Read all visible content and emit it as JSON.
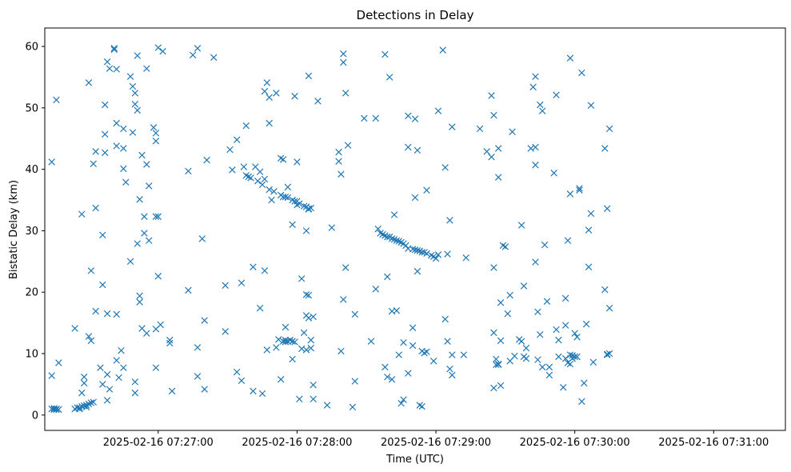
{
  "chart_data": {
    "type": "scatter",
    "title": "Detections in Delay",
    "xlabel": "Time (UTC)",
    "ylabel": "Bistatic Delay (km)",
    "marker": "x",
    "color": "#1f77b4",
    "grid": false,
    "x_ticks": [
      "2025-02-16 07:27:00",
      "2025-02-16 07:28:00",
      "2025-02-16 07:29:00",
      "2025-02-16 07:30:00",
      "2025-02-16 07:31:00"
    ],
    "x_tick_values": [
      "07:27:00",
      "07:28:00",
      "07:29:00",
      "07:30:00",
      "07:31:00"
    ],
    "y_ticks": [
      0,
      10,
      20,
      30,
      40,
      50,
      60
    ],
    "xlim": [
      "07:26:11",
      "07:31:31"
    ],
    "ylim": [
      -2.5,
      63
    ],
    "points": [
      [
        "07:26:14",
        41.2
      ],
      [
        "07:26:14",
        6.4
      ],
      [
        "07:26:16",
        51.3
      ],
      [
        "07:26:17",
        8.5
      ],
      [
        "07:26:14",
        1.0
      ],
      [
        "07:26:15",
        0.9
      ],
      [
        "07:26:16",
        1.0
      ],
      [
        "07:26:17",
        0.9
      ],
      [
        "07:26:15",
        1.1
      ],
      [
        "07:26:16",
        0.9
      ],
      [
        "07:26:24",
        1.0
      ],
      [
        "07:26:25",
        1.2
      ],
      [
        "07:26:26",
        1.2
      ],
      [
        "07:26:27",
        1.4
      ],
      [
        "07:26:28",
        1.5
      ],
      [
        "07:26:29",
        1.6
      ],
      [
        "07:26:30",
        1.8
      ],
      [
        "07:26:31",
        2.0
      ],
      [
        "07:26:32",
        2.1
      ],
      [
        "07:26:29",
        1.3
      ],
      [
        "07:26:26",
        1.0
      ],
      [
        "07:26:24",
        14.1
      ],
      [
        "07:26:27",
        32.7
      ],
      [
        "07:26:27",
        3.6
      ],
      [
        "07:26:28",
        6.2
      ],
      [
        "07:26:28",
        5.2
      ],
      [
        "07:26:30",
        54.1
      ],
      [
        "07:26:30",
        12.8
      ],
      [
        "07:26:31",
        12.1
      ],
      [
        "07:26:31",
        23.5
      ],
      [
        "07:26:32",
        40.9
      ],
      [
        "07:26:33",
        42.9
      ],
      [
        "07:26:33",
        33.7
      ],
      [
        "07:26:33",
        16.9
      ],
      [
        "07:26:35",
        7.7
      ],
      [
        "07:26:36",
        21.2
      ],
      [
        "07:26:36",
        29.3
      ],
      [
        "07:26:36",
        5.0
      ],
      [
        "07:26:37",
        50.5
      ],
      [
        "07:26:37",
        45.7
      ],
      [
        "07:26:37",
        42.7
      ],
      [
        "07:26:38",
        57.5
      ],
      [
        "07:26:38",
        16.5
      ],
      [
        "07:26:38",
        6.6
      ],
      [
        "07:26:38",
        2.4
      ],
      [
        "07:26:39",
        56.4
      ],
      [
        "07:26:39",
        4.2
      ],
      [
        "07:26:41",
        59.5
      ],
      [
        "07:26:41",
        59.7
      ],
      [
        "07:26:42",
        56.3
      ],
      [
        "07:26:42",
        47.5
      ],
      [
        "07:26:42",
        43.8
      ],
      [
        "07:26:42",
        16.4
      ],
      [
        "07:26:42",
        8.9
      ],
      [
        "07:26:43",
        6.1
      ],
      [
        "07:26:44",
        10.5
      ],
      [
        "07:26:45",
        40.1
      ],
      [
        "07:26:45",
        46.6
      ],
      [
        "07:26:45",
        43.4
      ],
      [
        "07:26:45",
        7.7
      ],
      [
        "07:26:46",
        37.9
      ],
      [
        "07:26:48",
        55.1
      ],
      [
        "07:26:48",
        25.0
      ],
      [
        "07:26:49",
        53.5
      ],
      [
        "07:26:49",
        46.0
      ],
      [
        "07:26:50",
        52.4
      ],
      [
        "07:26:50",
        50.6
      ],
      [
        "07:26:50",
        3.6
      ],
      [
        "07:26:50",
        5.4
      ],
      [
        "07:26:51",
        58.5
      ],
      [
        "07:26:51",
        49.6
      ],
      [
        "07:26:51",
        27.9
      ],
      [
        "07:26:52",
        35.1
      ],
      [
        "07:26:52",
        18.4
      ],
      [
        "07:26:52",
        19.4
      ],
      [
        "07:26:53",
        42.3
      ],
      [
        "07:26:53",
        14.1
      ],
      [
        "07:26:54",
        32.3
      ],
      [
        "07:26:54",
        29.6
      ],
      [
        "07:26:55",
        56.4
      ],
      [
        "07:26:55",
        40.8
      ],
      [
        "07:26:56",
        37.3
      ],
      [
        "07:26:56",
        28.4
      ],
      [
        "07:26:55",
        13.3
      ],
      [
        "07:26:58",
        46.8
      ],
      [
        "07:26:59",
        45.9
      ],
      [
        "07:26:59",
        44.6
      ],
      [
        "07:26:59",
        32.3
      ],
      [
        "07:26:59",
        14.0
      ],
      [
        "07:26:59",
        7.7
      ],
      [
        "07:27:00",
        59.8
      ],
      [
        "07:27:00",
        32.3
      ],
      [
        "07:27:00",
        22.6
      ],
      [
        "07:27:01",
        14.7
      ],
      [
        "07:27:02",
        59.2
      ],
      [
        "07:27:05",
        11.7
      ],
      [
        "07:27:05",
        12.2
      ],
      [
        "07:27:06",
        3.9
      ],
      [
        "07:27:13",
        39.7
      ],
      [
        "07:27:13",
        20.3
      ],
      [
        "07:27:15",
        58.6
      ],
      [
        "07:27:17",
        59.7
      ],
      [
        "07:27:17",
        6.3
      ],
      [
        "07:27:17",
        11.0
      ],
      [
        "07:27:19",
        28.7
      ],
      [
        "07:27:20",
        4.2
      ],
      [
        "07:27:20",
        15.4
      ],
      [
        "07:27:21",
        41.5
      ],
      [
        "07:27:24",
        58.2
      ],
      [
        "07:27:29",
        21.1
      ],
      [
        "07:27:29",
        13.6
      ],
      [
        "07:27:31",
        43.2
      ],
      [
        "07:27:32",
        39.9
      ],
      [
        "07:27:34",
        44.8
      ],
      [
        "07:27:34",
        7.0
      ],
      [
        "07:27:36",
        21.5
      ],
      [
        "07:27:36",
        5.6
      ],
      [
        "07:27:38",
        47.1
      ],
      [
        "07:27:41",
        24.1
      ],
      [
        "07:27:41",
        3.9
      ],
      [
        "07:27:44",
        17.4
      ],
      [
        "07:27:45",
        3.5
      ],
      [
        "07:27:46",
        23.5
      ],
      [
        "07:27:47",
        10.6
      ],
      [
        "07:27:51",
        11.0
      ],
      [
        "07:27:53",
        5.8
      ],
      [
        "07:27:37",
        40.4
      ],
      [
        "07:27:38",
        39.0
      ],
      [
        "07:27:39",
        38.8
      ],
      [
        "07:27:40",
        38.6
      ],
      [
        "07:27:42",
        40.4
      ],
      [
        "07:27:43",
        38.1
      ],
      [
        "07:27:44",
        39.6
      ],
      [
        "07:27:45",
        37.5
      ],
      [
        "07:27:46",
        38.4
      ],
      [
        "07:27:48",
        36.7
      ],
      [
        "07:27:49",
        35.0
      ],
      [
        "07:27:50",
        36.4
      ],
      [
        "07:27:53",
        35.8
      ],
      [
        "07:27:54",
        35.5
      ],
      [
        "07:27:55",
        35.5
      ],
      [
        "07:27:56",
        37.1
      ],
      [
        "07:27:56",
        35.4
      ],
      [
        "07:27:58",
        35.0
      ],
      [
        "07:27:59",
        34.8
      ],
      [
        "07:28:00",
        34.8
      ],
      [
        "07:28:00",
        34.2
      ],
      [
        "07:28:01",
        34.4
      ],
      [
        "07:28:03",
        34.0
      ],
      [
        "07:28:04",
        33.9
      ],
      [
        "07:28:05",
        33.6
      ],
      [
        "07:28:05",
        33.5
      ],
      [
        "07:28:06",
        33.7
      ],
      [
        "07:27:46",
        52.7
      ],
      [
        "07:27:47",
        54.1
      ],
      [
        "07:27:48",
        51.7
      ],
      [
        "07:27:48",
        47.5
      ],
      [
        "07:27:51",
        52.4
      ],
      [
        "07:27:53",
        41.8
      ],
      [
        "07:27:54",
        41.6
      ],
      [
        "07:27:58",
        31.0
      ],
      [
        "07:27:58",
        9.1
      ],
      [
        "07:27:59",
        51.9
      ],
      [
        "07:28:00",
        41.2
      ],
      [
        "07:27:52",
        12.3
      ],
      [
        "07:27:54",
        12.0
      ],
      [
        "07:27:55",
        12.2
      ],
      [
        "07:27:56",
        12.0
      ],
      [
        "07:27:57",
        12.2
      ],
      [
        "07:27:58",
        12.0
      ],
      [
        "07:27:59",
        11.9
      ],
      [
        "07:27:55",
        14.3
      ],
      [
        "07:27:55",
        11.9
      ],
      [
        "07:28:01",
        2.6
      ],
      [
        "07:28:02",
        22.2
      ],
      [
        "07:28:02",
        10.8
      ],
      [
        "07:28:03",
        13.4
      ],
      [
        "07:28:04",
        19.6
      ],
      [
        "07:28:04",
        16.2
      ],
      [
        "07:28:04",
        10.6
      ],
      [
        "07:28:05",
        19.5
      ],
      [
        "07:28:05",
        15.8
      ],
      [
        "07:28:06",
        12.2
      ],
      [
        "07:28:06",
        10.9
      ],
      [
        "07:28:07",
        16.0
      ],
      [
        "07:28:07",
        4.9
      ],
      [
        "07:28:07",
        2.6
      ],
      [
        "07:28:04",
        30.0
      ],
      [
        "07:28:05",
        55.2
      ],
      [
        "07:28:09",
        51.1
      ],
      [
        "07:28:13",
        1.6
      ],
      [
        "07:28:15",
        30.5
      ],
      [
        "07:28:18",
        41.3
      ],
      [
        "07:28:18",
        42.8
      ],
      [
        "07:28:19",
        39.2
      ],
      [
        "07:28:19",
        10.4
      ],
      [
        "07:28:20",
        57.4
      ],
      [
        "07:28:20",
        58.8
      ],
      [
        "07:28:20",
        18.8
      ],
      [
        "07:28:21",
        52.4
      ],
      [
        "07:28:21",
        24.0
      ],
      [
        "07:28:22",
        43.9
      ],
      [
        "07:28:24",
        1.3
      ],
      [
        "07:28:25",
        5.5
      ],
      [
        "07:28:25",
        16.4
      ],
      [
        "07:28:29",
        48.3
      ],
      [
        "07:28:32",
        12.0
      ],
      [
        "07:28:34",
        48.3
      ],
      [
        "07:28:34",
        20.5
      ],
      [
        "07:28:35",
        30.3
      ],
      [
        "07:28:36",
        29.6
      ],
      [
        "07:28:37",
        29.4
      ],
      [
        "07:28:38",
        29.2
      ],
      [
        "07:28:39",
        29.0
      ],
      [
        "07:28:40",
        29.0
      ],
      [
        "07:28:41",
        28.7
      ],
      [
        "07:28:42",
        28.6
      ],
      [
        "07:28:43",
        28.4
      ],
      [
        "07:28:44",
        28.3
      ],
      [
        "07:28:45",
        28.1
      ],
      [
        "07:28:46",
        27.9
      ],
      [
        "07:28:47",
        27.6
      ],
      [
        "07:28:48",
        27.1
      ],
      [
        "07:28:50",
        27.0
      ],
      [
        "07:28:51",
        26.9
      ],
      [
        "07:28:52",
        26.8
      ],
      [
        "07:28:53",
        26.7
      ],
      [
        "07:28:54",
        26.5
      ],
      [
        "07:28:55",
        26.5
      ],
      [
        "07:28:56",
        26.3
      ],
      [
        "07:28:58",
        26.0
      ],
      [
        "07:28:59",
        25.8
      ],
      [
        "07:29:00",
        25.5
      ],
      [
        "07:29:01",
        26.1
      ],
      [
        "07:29:05",
        26.2
      ],
      [
        "07:28:38",
        58.7
      ],
      [
        "07:28:39",
        22.5
      ],
      [
        "07:28:40",
        55.0
      ],
      [
        "07:28:38",
        7.8
      ],
      [
        "07:28:39",
        6.2
      ],
      [
        "07:28:41",
        16.9
      ],
      [
        "07:28:41",
        5.8
      ],
      [
        "07:28:42",
        32.6
      ],
      [
        "07:28:43",
        17.0
      ],
      [
        "07:28:44",
        9.8
      ],
      [
        "07:28:45",
        1.9
      ],
      [
        "07:28:46",
        2.5
      ],
      [
        "07:28:46",
        11.8
      ],
      [
        "07:28:48",
        6.8
      ],
      [
        "07:28:48",
        48.7
      ],
      [
        "07:28:48",
        43.6
      ],
      [
        "07:28:50",
        14.2
      ],
      [
        "07:28:50",
        11.3
      ],
      [
        "07:28:51",
        48.2
      ],
      [
        "07:28:51",
        35.4
      ],
      [
        "07:28:52",
        23.4
      ],
      [
        "07:28:52",
        43.1
      ],
      [
        "07:28:53",
        1.6
      ],
      [
        "07:28:54",
        1.4
      ],
      [
        "07:28:54",
        10.4
      ],
      [
        "07:28:55",
        10.1
      ],
      [
        "07:28:56",
        10.3
      ],
      [
        "07:28:56",
        36.6
      ],
      [
        "07:28:59",
        8.8
      ],
      [
        "07:29:01",
        49.5
      ],
      [
        "07:29:03",
        59.4
      ],
      [
        "07:29:04",
        40.3
      ],
      [
        "07:29:04",
        15.6
      ],
      [
        "07:29:05",
        12.0
      ],
      [
        "07:29:06",
        31.7
      ],
      [
        "07:29:06",
        7.5
      ],
      [
        "07:29:07",
        6.5
      ],
      [
        "07:29:07",
        9.8
      ],
      [
        "07:29:07",
        46.9
      ],
      [
        "07:29:12",
        9.8
      ],
      [
        "07:29:13",
        25.6
      ],
      [
        "07:29:19",
        46.6
      ],
      [
        "07:29:22",
        42.9
      ],
      [
        "07:29:24",
        42.0
      ],
      [
        "07:29:24",
        52.0
      ],
      [
        "07:29:25",
        48.8
      ],
      [
        "07:29:25",
        24.0
      ],
      [
        "07:29:25",
        13.4
      ],
      [
        "07:29:25",
        4.4
      ],
      [
        "07:29:26",
        9.1
      ],
      [
        "07:29:26",
        8.2
      ],
      [
        "07:29:27",
        8.2
      ],
      [
        "07:29:27",
        8.3
      ],
      [
        "07:29:27",
        43.4
      ],
      [
        "07:29:27",
        38.7
      ],
      [
        "07:29:28",
        18.3
      ],
      [
        "07:29:28",
        12.1
      ],
      [
        "07:29:28",
        4.8
      ],
      [
        "07:29:29",
        27.6
      ],
      [
        "07:29:30",
        27.4
      ],
      [
        "07:29:31",
        16.5
      ],
      [
        "07:29:32",
        8.8
      ],
      [
        "07:29:32",
        19.5
      ],
      [
        "07:29:33",
        46.1
      ],
      [
        "07:29:34",
        9.6
      ],
      [
        "07:29:36",
        12.3
      ],
      [
        "07:29:37",
        12.0
      ],
      [
        "07:29:37",
        30.9
      ],
      [
        "07:29:38",
        21.0
      ],
      [
        "07:29:38",
        9.5
      ],
      [
        "07:29:39",
        10.9
      ],
      [
        "07:29:39",
        9.2
      ],
      [
        "07:29:41",
        43.4
      ],
      [
        "07:29:42",
        53.4
      ],
      [
        "07:29:43",
        55.1
      ],
      [
        "07:29:43",
        43.6
      ],
      [
        "07:29:43",
        40.7
      ],
      [
        "07:29:43",
        24.9
      ],
      [
        "07:29:44",
        16.8
      ],
      [
        "07:29:44",
        9.0
      ],
      [
        "07:29:45",
        50.5
      ],
      [
        "07:29:45",
        13.1
      ],
      [
        "07:29:46",
        49.5
      ],
      [
        "07:29:46",
        7.8
      ],
      [
        "07:29:47",
        27.7
      ],
      [
        "07:29:48",
        18.5
      ],
      [
        "07:29:49",
        6.5
      ],
      [
        "07:29:49",
        7.8
      ],
      [
        "07:29:51",
        39.4
      ],
      [
        "07:29:52",
        52.1
      ],
      [
        "07:29:52",
        13.9
      ],
      [
        "07:29:53",
        12.2
      ],
      [
        "07:29:53",
        9.5
      ],
      [
        "07:29:55",
        4.5
      ],
      [
        "07:29:56",
        14.6
      ],
      [
        "07:29:56",
        9.2
      ],
      [
        "07:29:56",
        19.0
      ],
      [
        "07:29:57",
        8.5
      ],
      [
        "07:29:57",
        28.4
      ],
      [
        "07:29:58",
        58.1
      ],
      [
        "07:29:58",
        9.8
      ],
      [
        "07:29:58",
        8.3
      ],
      [
        "07:29:59",
        9.7
      ],
      [
        "07:29:59",
        9.2
      ],
      [
        "07:30:00",
        9.5
      ],
      [
        "07:29:58",
        36.0
      ],
      [
        "07:30:00",
        13.3
      ],
      [
        "07:30:01",
        12.7
      ],
      [
        "07:30:01",
        9.5
      ],
      [
        "07:30:02",
        36.9
      ],
      [
        "07:30:02",
        36.6
      ],
      [
        "07:30:03",
        55.7
      ],
      [
        "07:30:03",
        2.2
      ],
      [
        "07:30:04",
        5.2
      ],
      [
        "07:30:05",
        14.8
      ],
      [
        "07:30:06",
        30.1
      ],
      [
        "07:30:06",
        24.1
      ],
      [
        "07:30:07",
        50.4
      ],
      [
        "07:30:07",
        32.8
      ],
      [
        "07:30:08",
        8.6
      ],
      [
        "07:30:13",
        20.4
      ],
      [
        "07:30:13",
        43.4
      ],
      [
        "07:30:14",
        33.6
      ],
      [
        "07:30:14",
        9.8
      ],
      [
        "07:30:14",
        9.9
      ],
      [
        "07:30:15",
        10.0
      ],
      [
        "07:30:15",
        17.4
      ],
      [
        "07:30:15",
        46.6
      ]
    ]
  }
}
